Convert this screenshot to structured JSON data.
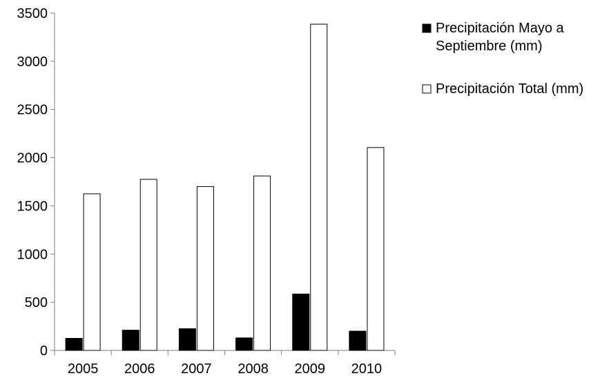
{
  "chart_data": {
    "type": "bar",
    "categories": [
      "2005",
      "2006",
      "2007",
      "2008",
      "2009",
      "2010"
    ],
    "series": [
      {
        "name": "Precipitación Mayo a Septiembre (mm)",
        "values": [
          125,
          210,
          225,
          130,
          585,
          200
        ],
        "color": "#000000"
      },
      {
        "name": "Precipitación Total (mm)",
        "values": [
          1625,
          1775,
          1700,
          1810,
          3385,
          2105
        ],
        "color": "#ffffff"
      }
    ],
    "title": "",
    "xlabel": "",
    "ylabel": "",
    "ylim": [
      0,
      3500
    ],
    "yticks": [
      0,
      500,
      1000,
      1500,
      2000,
      2500,
      3000,
      3500
    ],
    "grid": false,
    "legend_position": "right",
    "legend": [
      {
        "lines": [
          "Precipitación Mayo a",
          "Septiembre (mm)"
        ]
      },
      {
        "lines": [
          "Precipitación Total (mm)"
        ]
      }
    ]
  }
}
